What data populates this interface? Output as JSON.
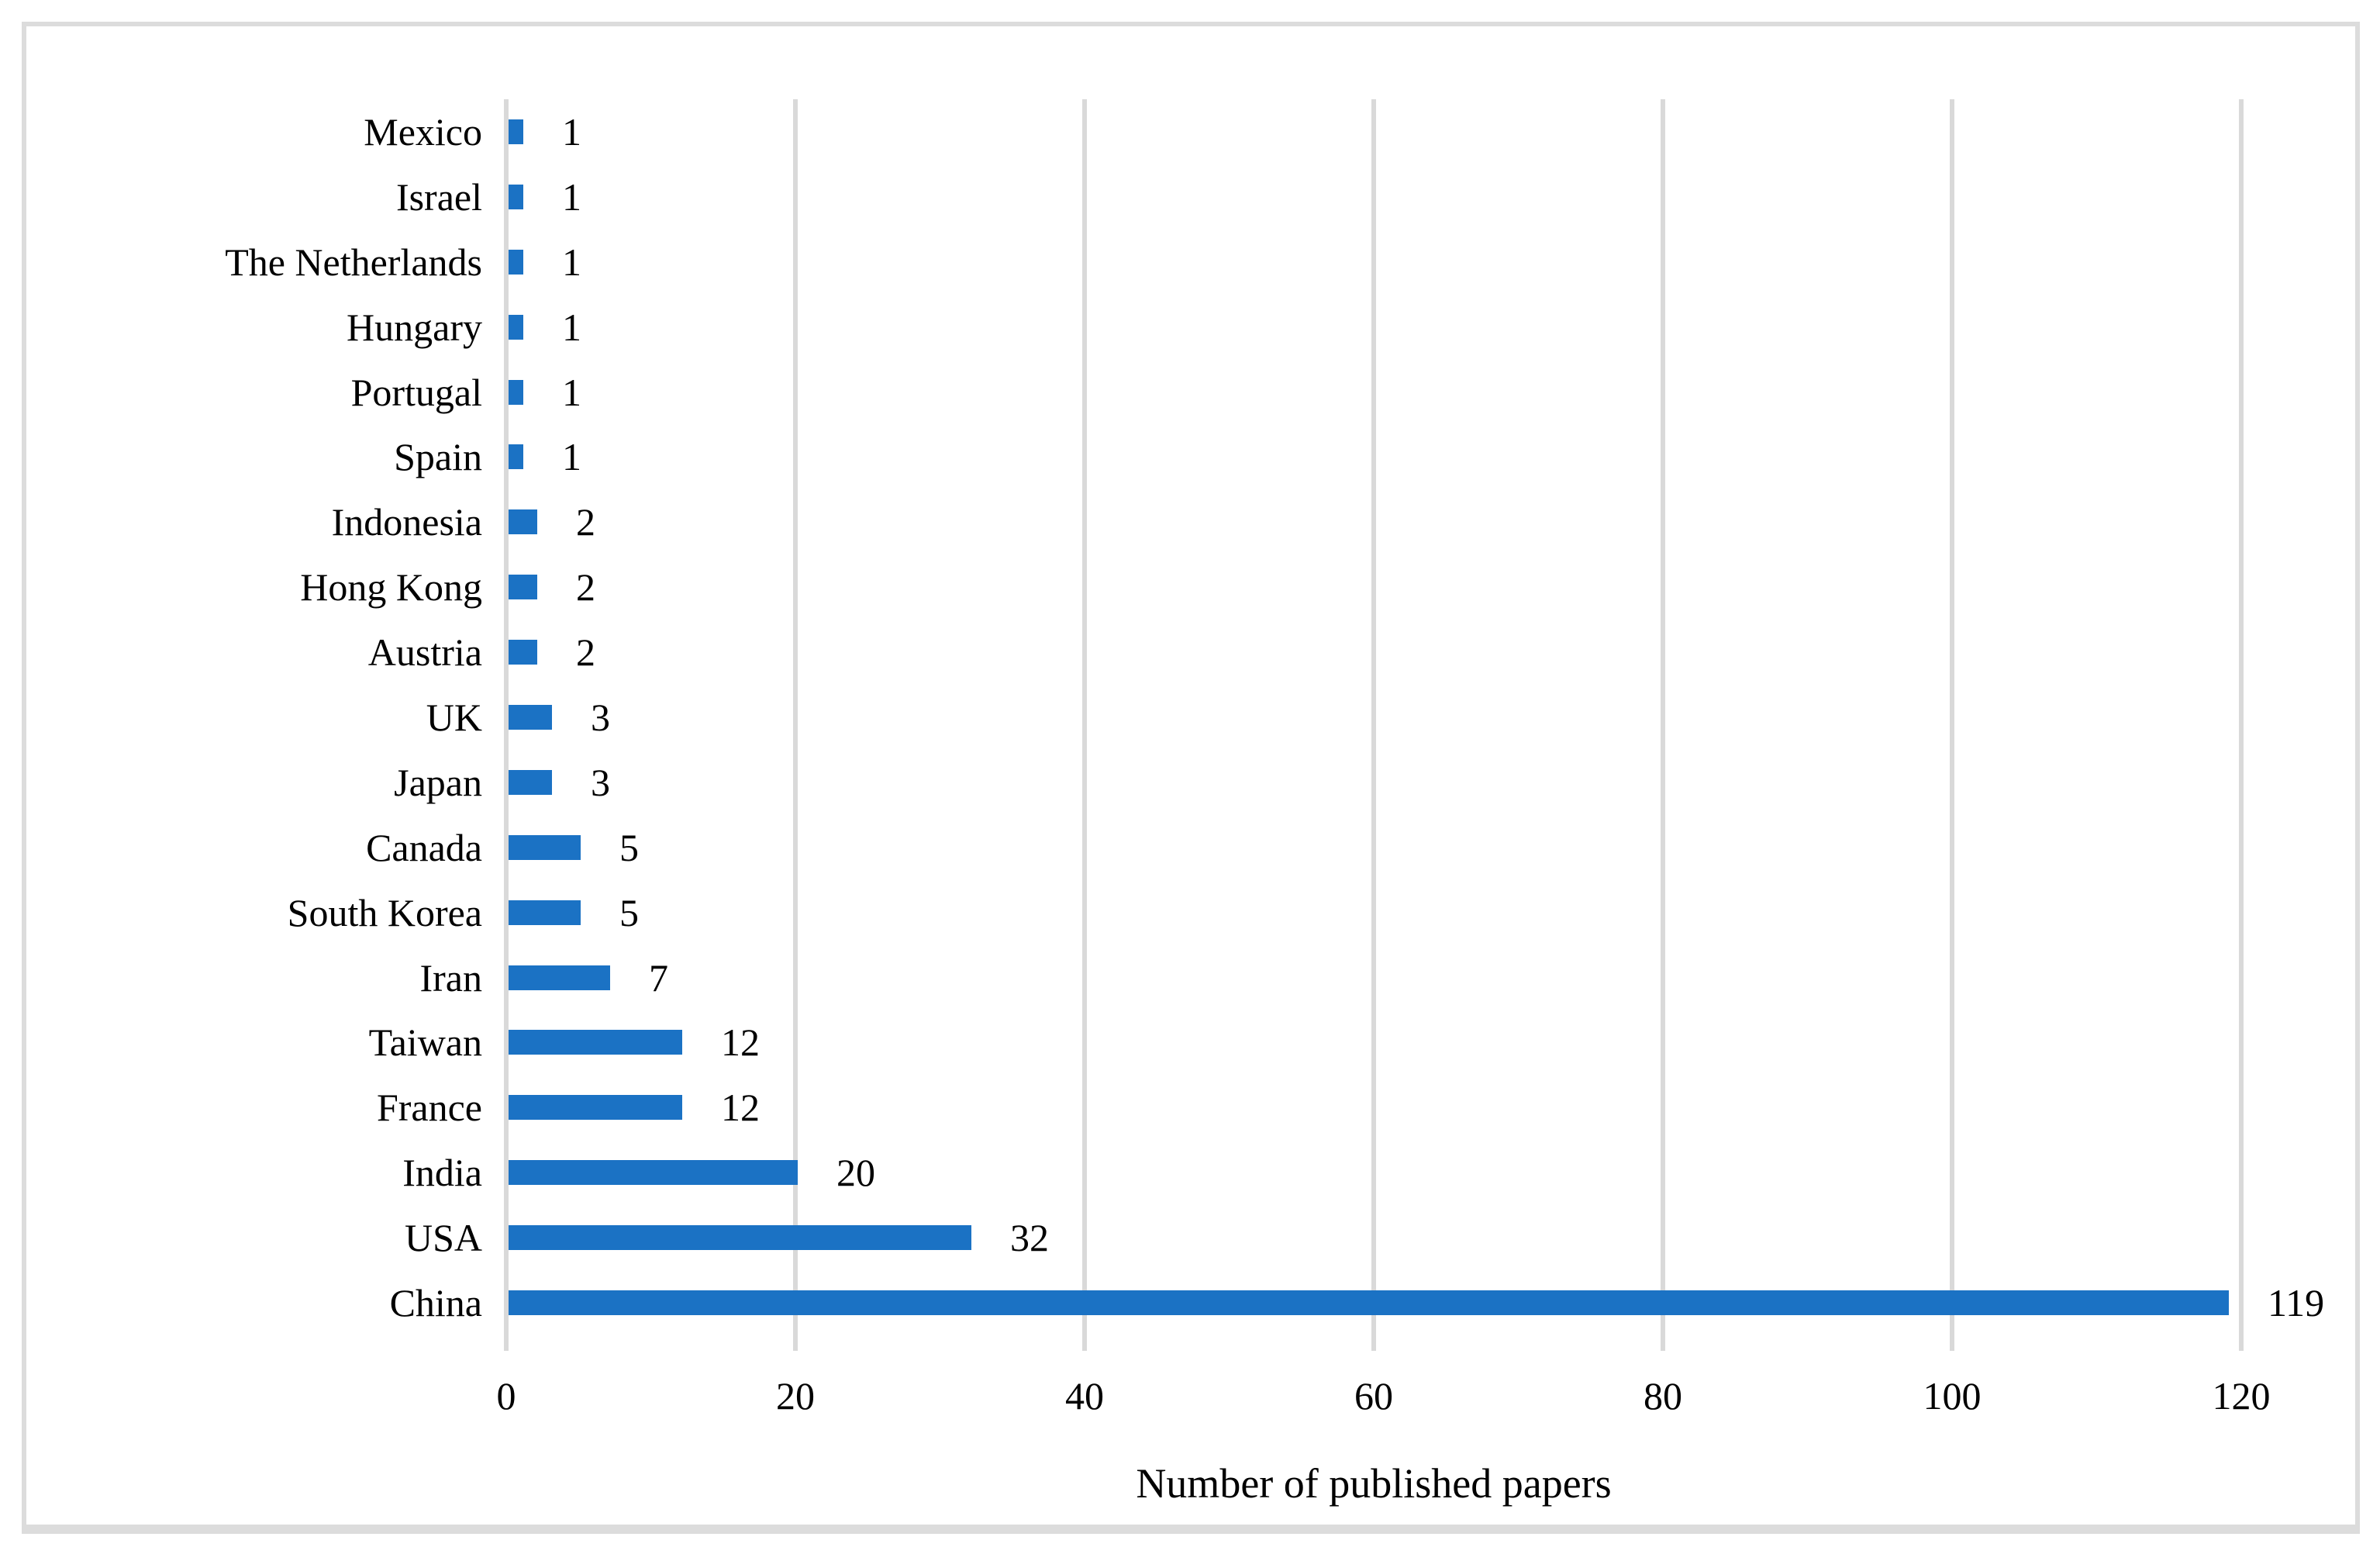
{
  "chart_data": {
    "type": "bar",
    "orientation": "horizontal",
    "title": "",
    "xlabel": "Number of published papers",
    "ylabel": "",
    "categories": [
      "Mexico",
      "Israel",
      "The Netherlands",
      "Hungary",
      "Portugal",
      "Spain",
      "Indonesia",
      "Hong Kong",
      "Austria",
      "UK",
      "Japan",
      "Canada",
      "South Korea",
      "Iran",
      "Taiwan",
      "France",
      "India",
      "USA",
      "China"
    ],
    "values": [
      1,
      1,
      1,
      1,
      1,
      1,
      2,
      2,
      2,
      3,
      3,
      5,
      5,
      7,
      12,
      12,
      20,
      32,
      119
    ],
    "data_labels": [
      "1",
      "1",
      "1",
      "1",
      "1",
      "1",
      "2",
      "2",
      "2",
      "3",
      "3",
      "5",
      "5",
      "7",
      "12",
      "12",
      "20",
      "32",
      "119"
    ],
    "x_ticks": [
      0,
      20,
      40,
      60,
      80,
      100,
      120
    ],
    "xlim": [
      0,
      120
    ],
    "grid": "vertical-major-gridlines",
    "legend": "none",
    "bar_color": "#1b72c4",
    "gridline_color": "#d9d9d9",
    "frame_color": "#dcdcdc",
    "text_color": "#000000"
  }
}
